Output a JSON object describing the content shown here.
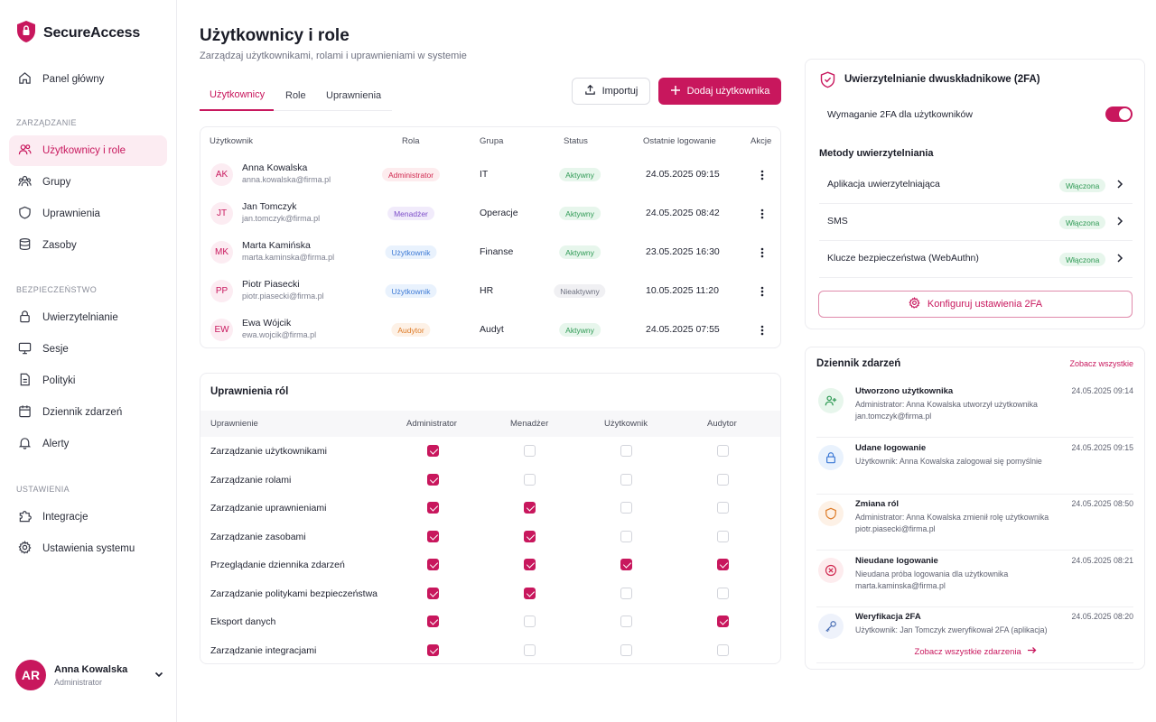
{
  "brand": {
    "name": "SecureAccess"
  },
  "nav": {
    "sections": {
      "manage": "ZARZĄDZANIE",
      "security": "BEZPIECZEŃSTWO",
      "settings": "USTAWIENIA"
    },
    "items": [
      {
        "label": "Panel główny"
      },
      {
        "label": "Użytkownicy i role"
      },
      {
        "label": "Grupy"
      },
      {
        "label": "Uprawnienia"
      },
      {
        "label": "Zasoby"
      },
      {
        "label": "Uwierzytelnianie"
      },
      {
        "label": "Sesje"
      },
      {
        "label": "Polityki"
      },
      {
        "label": "Dziennik zdarzeń"
      },
      {
        "label": "Alerty"
      },
      {
        "label": "Integracje"
      },
      {
        "label": "Ustawienia systemu"
      }
    ]
  },
  "current_user": {
    "initials": "AR",
    "name": "Anna Kowalska",
    "role": "Administrator"
  },
  "header": {
    "title": "Użytkownicy i role",
    "subtitle": "Zarządzaj użytkownikami, rolami i uprawnieniami w systemie"
  },
  "tabs": [
    {
      "label": "Użytkownicy"
    },
    {
      "label": "Role"
    },
    {
      "label": "Uprawnienia"
    }
  ],
  "actions": {
    "import_label": "Importuj",
    "add_label": "Dodaj użytkownika"
  },
  "users_table": {
    "headers": {
      "user": "Użytkownik",
      "role": "Rola",
      "group": "Grupa",
      "status": "Status",
      "last_login": "Ostatnie logowanie",
      "actions": "Akcje"
    },
    "rows": [
      {
        "initials": "AK",
        "name": "Anna Kowalska",
        "email": "anna.kowalska@firma.pl",
        "role": "Administrator",
        "group": "IT",
        "status": "Aktywny",
        "last_login": "24.05.2025 09:15"
      },
      {
        "initials": "JT",
        "name": "Jan Tomczyk",
        "email": "jan.tomczyk@firma.pl",
        "role": "Menadżer",
        "group": "Operacje",
        "status": "Aktywny",
        "last_login": "24.05.2025 08:42"
      },
      {
        "initials": "MK",
        "name": "Marta Kamińska",
        "email": "marta.kaminska@firma.pl",
        "role": "Użytkownik",
        "group": "Finanse",
        "status": "Aktywny",
        "last_login": "23.05.2025 16:30"
      },
      {
        "initials": "PP",
        "name": "Piotr Piasecki",
        "email": "piotr.piasecki@firma.pl",
        "role": "Użytkownik",
        "group": "HR",
        "status": "Nieaktywny",
        "last_login": "10.05.2025 11:20"
      },
      {
        "initials": "EW",
        "name": "Ewa Wójcik",
        "email": "ewa.wojcik@firma.pl",
        "role": "Audytor",
        "group": "Audyt",
        "status": "Aktywny",
        "last_login": "24.05.2025 07:55"
      }
    ]
  },
  "role_colors": {
    "Administrator": {
      "bg": "#fdecee",
      "fg": "#d0284f"
    },
    "Menadżer": {
      "bg": "#f1ebfb",
      "fg": "#7b4bc8"
    },
    "Użytkownik": {
      "bg": "#e9f2fd",
      "fg": "#3f7bd6"
    },
    "Audytor": {
      "bg": "#fdf1e6",
      "fg": "#dd7a26"
    }
  },
  "status_colors": {
    "Aktywny": {
      "bg": "#e7f6ec",
      "fg": "#2f9a55"
    },
    "Nieaktywny": {
      "bg": "#f0f0f3",
      "fg": "#6e7180"
    }
  },
  "permissions": {
    "title": "Uprawnienia ról",
    "headers": [
      "Uprawnienie",
      "Administrator",
      "Menadżer",
      "Użytkownik",
      "Audytor"
    ],
    "rows": [
      {
        "label": "Zarządzanie użytkownikami",
        "values": [
          true,
          false,
          false,
          false
        ]
      },
      {
        "label": "Zarządzanie rolami",
        "values": [
          true,
          false,
          false,
          false
        ]
      },
      {
        "label": "Zarządzanie uprawnieniami",
        "values": [
          true,
          true,
          false,
          false
        ]
      },
      {
        "label": "Zarządzanie zasobami",
        "values": [
          true,
          true,
          false,
          false
        ]
      },
      {
        "label": "Przeglądanie dziennika zdarzeń",
        "values": [
          true,
          true,
          true,
          true
        ]
      },
      {
        "label": "Zarządzanie politykami bezpieczeństwa",
        "values": [
          true,
          true,
          false,
          false
        ]
      },
      {
        "label": "Eksport danych",
        "values": [
          true,
          false,
          false,
          true
        ]
      },
      {
        "label": "Zarządzanie integracjami",
        "values": [
          true,
          false,
          false,
          false
        ]
      }
    ]
  },
  "twofa": {
    "title": "Uwierzytelnianie dwuskładnikowe (2FA)",
    "requirement_label": "Wymaganie 2FA dla użytkowników",
    "requirement_on": true,
    "methods_title": "Metody uwierzytelniania",
    "methods": [
      {
        "label": "Aplikacja uwierzytelniająca",
        "status": "Włączona"
      },
      {
        "label": "SMS",
        "status": "Włączona"
      },
      {
        "label": "Klucze bezpieczeństwa (WebAuthn)",
        "status": "Włączona"
      }
    ],
    "configure_label": "Konfiguruj ustawienia 2FA"
  },
  "events": {
    "title": "Dziennik zdarzeń",
    "see_all": "Zobacz wszystkie",
    "more": "Zobacz wszystkie zdarzenia",
    "items": [
      {
        "icon": "user-plus-icon",
        "title": "Utworzono użytkownika",
        "desc": "Administrator: Anna Kowalska utworzył użytkownika jan.tomczyk@firma.pl",
        "time": "24.05.2025 09:14",
        "bg": "#e7f6ec",
        "fg": "#2f9a55"
      },
      {
        "icon": "lock-icon",
        "title": "Udane logowanie",
        "desc": "Użytkownik: Anna Kowalska zalogował się pomyślnie",
        "time": "24.05.2025 09:15",
        "bg": "#e9f2fd",
        "fg": "#3f7bd6"
      },
      {
        "icon": "shield-icon",
        "title": "Zmiana ról",
        "desc": "Administrator: Anna Kowalska zmienił rolę użytkownika piotr.piasecki@firma.pl",
        "time": "24.05.2025 08:50",
        "bg": "#fdf1e6",
        "fg": "#dd7a26"
      },
      {
        "icon": "x-circle-icon",
        "title": "Nieudane logowanie",
        "desc": "Nieudana próba logowania dla użytkownika marta.kaminska@firma.pl",
        "time": "24.05.2025 08:21",
        "bg": "#fdecee",
        "fg": "#d0284f"
      },
      {
        "icon": "key-icon",
        "title": "Weryfikacja 2FA",
        "desc": "Użytkownik: Jan Tomczyk zweryfikował 2FA (aplikacja)",
        "time": "24.05.2025 08:20",
        "bg": "#eef2fb",
        "fg": "#4a6fb5"
      }
    ]
  },
  "accent": "#c8175d"
}
